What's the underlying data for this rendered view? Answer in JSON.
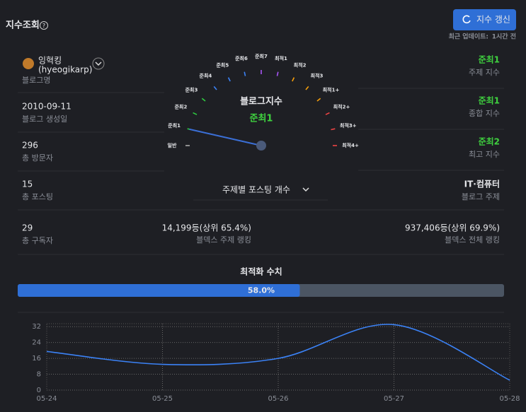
{
  "header": {
    "title": "지수조회",
    "button": "지수 갱신",
    "updated_label": "최근 업데이트:",
    "updated_value": "1시간 전"
  },
  "profile": {
    "name": "잉혁킹",
    "id": "(hyeogikarp)",
    "label": "블로그명"
  },
  "left_stats": [
    {
      "value": "2010-09-11",
      "label": "블로그 생성일"
    },
    {
      "value": "296",
      "label": "총 방문자"
    },
    {
      "value": "15",
      "label": "총 포스팅"
    },
    {
      "value": "29",
      "label": "총 구독자"
    }
  ],
  "right_stats": [
    {
      "value": "준최1",
      "label": "주제 지수"
    },
    {
      "value": "준최1",
      "label": "종합 지수"
    },
    {
      "value": "준최2",
      "label": "최고 지수"
    },
    {
      "value": "IT·컴퓨터",
      "label": "블로그 주제"
    }
  ],
  "gauge": {
    "title": "블로그지수",
    "value": "준최1",
    "levels": [
      {
        "name": "일반",
        "color": "#aaaaaa"
      },
      {
        "name": "준최1",
        "color": "#2ecc40"
      },
      {
        "name": "준최2",
        "color": "#2ecc40"
      },
      {
        "name": "준최3",
        "color": "#2ecc40"
      },
      {
        "name": "준최4",
        "color": "#3b82f6"
      },
      {
        "name": "준최5",
        "color": "#3b82f6"
      },
      {
        "name": "준최6",
        "color": "#3b82f6"
      },
      {
        "name": "준최7",
        "color": "#a855f7"
      },
      {
        "name": "최적1",
        "color": "#a855f7"
      },
      {
        "name": "최적2",
        "color": "#f59e0b"
      },
      {
        "name": "최적3",
        "color": "#f59e0b"
      },
      {
        "name": "최적1+",
        "color": "#f59e0b"
      },
      {
        "name": "최적2+",
        "color": "#ef4444"
      },
      {
        "name": "최적3+",
        "color": "#ef4444"
      },
      {
        "name": "최적4+",
        "color": "#ef4444"
      }
    ]
  },
  "dropdown": "주제별 포스팅 개수",
  "rankings": [
    {
      "value": "14,199등(상위 65.4%)",
      "label": "블덱스 주제 랭킹"
    },
    {
      "value": "937,406등(상위 69.9%)",
      "label": "블덱스 전체 랭킹"
    }
  ],
  "optimization": {
    "title": "최적화 수치",
    "value": 58.0,
    "value_label": "58.0%"
  },
  "chart_data": {
    "type": "line",
    "categories": [
      "05-24",
      "05-25",
      "05-26",
      "05-27",
      "05-28"
    ],
    "values": [
      19.5,
      13,
      16,
      33,
      5
    ],
    "color": "#3b82f6",
    "ylim": [
      0,
      33.5
    ],
    "yticks": [
      0,
      8,
      16,
      24,
      32
    ],
    "grid": true
  }
}
